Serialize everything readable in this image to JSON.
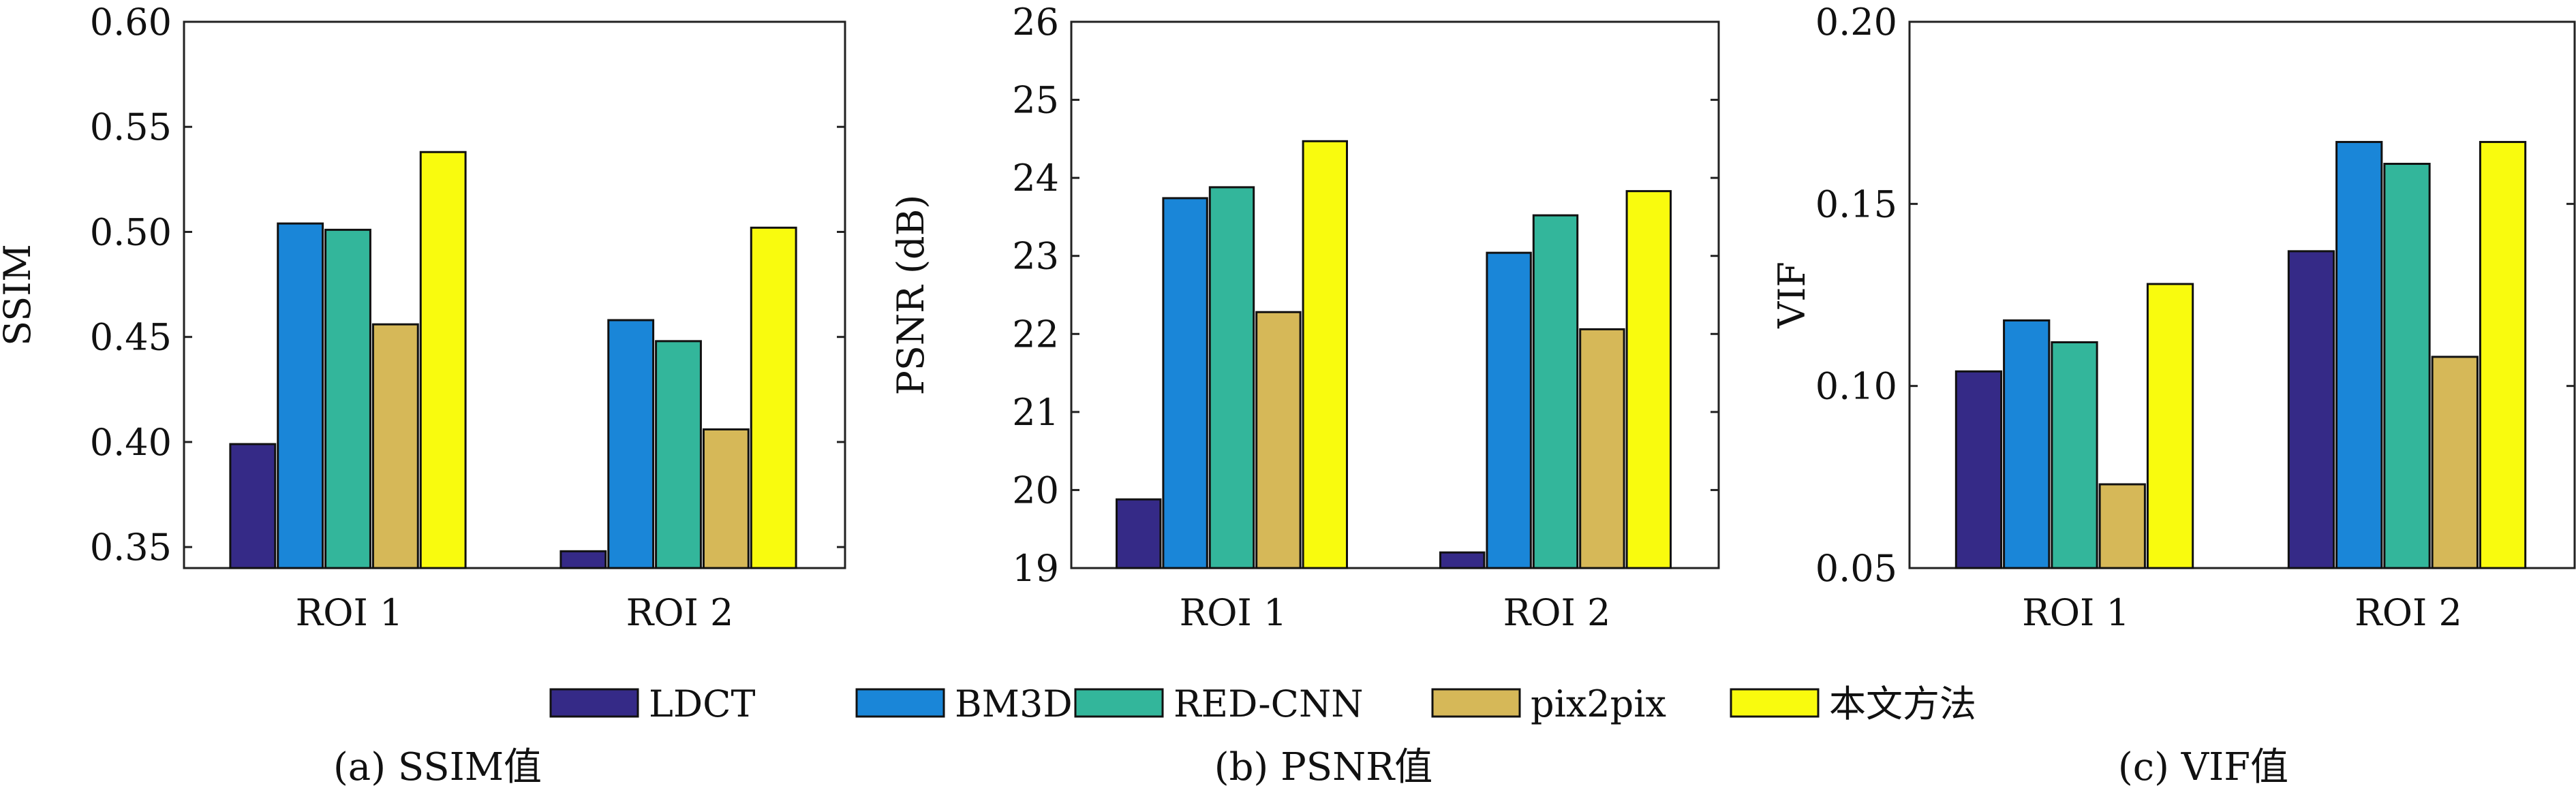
{
  "legend": [
    "LDCT",
    "BM3D",
    "RED-CNN",
    "pix2pix",
    "本文方法"
  ],
  "colors": [
    "#352a87",
    "#1a86d8",
    "#33b69b",
    "#d6b858",
    "#f9fb0e"
  ],
  "chart_data": [
    {
      "type": "bar",
      "caption": "(a) SSIM值",
      "ylabel": "SSIM",
      "categories": [
        "ROI 1",
        "ROI 2"
      ],
      "ylim": [
        0.34,
        0.6
      ],
      "yticks": [
        0.35,
        0.4,
        0.45,
        0.5,
        0.55,
        0.6
      ],
      "ytick_labels": [
        "0.35",
        "0.40",
        "0.45",
        "0.50",
        "0.55",
        "0.60"
      ],
      "grid": false,
      "series": [
        {
          "name": "LDCT",
          "values": [
            0.399,
            0.348
          ]
        },
        {
          "name": "BM3D",
          "values": [
            0.504,
            0.458
          ]
        },
        {
          "name": "RED-CNN",
          "values": [
            0.501,
            0.448
          ]
        },
        {
          "name": "pix2pix",
          "values": [
            0.456,
            0.406
          ]
        },
        {
          "name": "本文方法",
          "values": [
            0.538,
            0.502
          ]
        }
      ]
    },
    {
      "type": "bar",
      "caption": "(b) PSNR值",
      "ylabel": "PSNR (dB)",
      "categories": [
        "ROI 1",
        "ROI 2"
      ],
      "ylim": [
        19,
        26
      ],
      "yticks": [
        19,
        20,
        21,
        22,
        23,
        24,
        25,
        26
      ],
      "ytick_labels": [
        "19",
        "20",
        "21",
        "22",
        "23",
        "24",
        "25",
        "26"
      ],
      "grid": false,
      "series": [
        {
          "name": "LDCT",
          "values": [
            19.88,
            19.2
          ]
        },
        {
          "name": "BM3D",
          "values": [
            23.74,
            23.04
          ]
        },
        {
          "name": "RED-CNN",
          "values": [
            23.88,
            23.52
          ]
        },
        {
          "name": "pix2pix",
          "values": [
            22.28,
            22.06
          ]
        },
        {
          "name": "本文方法",
          "values": [
            24.47,
            23.83
          ]
        }
      ]
    },
    {
      "type": "bar",
      "caption": "(c) VIF值",
      "ylabel": "VIF",
      "categories": [
        "ROI 1",
        "ROI 2"
      ],
      "ylim": [
        0.05,
        0.2
      ],
      "yticks": [
        0.05,
        0.1,
        0.15,
        0.2
      ],
      "ytick_labels": [
        "0.05",
        "0.10",
        "0.15",
        "0.20"
      ],
      "grid": false,
      "series": [
        {
          "name": "LDCT",
          "values": [
            0.104,
            0.137
          ]
        },
        {
          "name": "BM3D",
          "values": [
            0.118,
            0.167
          ]
        },
        {
          "name": "RED-CNN",
          "values": [
            0.112,
            0.161
          ]
        },
        {
          "name": "pix2pix",
          "values": [
            0.073,
            0.108
          ]
        },
        {
          "name": "本文方法",
          "values": [
            0.128,
            0.167
          ]
        }
      ]
    }
  ]
}
